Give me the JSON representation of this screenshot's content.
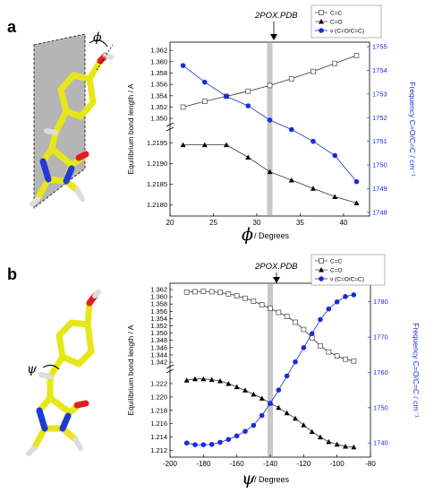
{
  "panels": [
    {
      "panel_label": "a",
      "molecule_angle_symbol": "ϕ",
      "annotation": "2POX.PDB",
      "legend": [
        "C=C",
        "C=O",
        "ν (C=O/C=C)"
      ],
      "xlabel_symbol": "ϕ",
      "xlabel_unit": "/ Degrees",
      "ylabel_left": "Equilibrium bond length / A",
      "ylabel_right": "Frequency C=O/C=C / cm⁻¹",
      "x_ticks": [
        "20",
        "25",
        "30",
        "35",
        "40"
      ],
      "y_upper_ticks": [
        "1.350",
        "1.352",
        "1.354",
        "1.356",
        "1.358",
        "1.360",
        "1.362"
      ],
      "y_lower_ticks": [
        "1.2180",
        "1.2185",
        "1.2190",
        "1.2195"
      ],
      "y_right_ticks": [
        "1748",
        "1749",
        "1750",
        "1751",
        "1752",
        "1753",
        "1754",
        "1755"
      ]
    },
    {
      "panel_label": "b",
      "molecule_angle_symbol": "ψ",
      "annotation": "2POX.PDB",
      "legend": [
        "C=C",
        "C=O",
        "ν (C=O/C=C)"
      ],
      "xlabel_symbol": "ψ",
      "xlabel_unit": "/ Degrees",
      "ylabel_left": "Equilibrium bond length / A",
      "ylabel_right": "Frequency C=O/C=C / cm⁻¹",
      "x_ticks": [
        "-200",
        "-180",
        "-160",
        "-140",
        "-120",
        "-100",
        "-80"
      ],
      "y_upper_ticks": [
        "1.342",
        "1.344",
        "1.346",
        "1.348",
        "1.350",
        "1.352",
        "1.354",
        "1.356",
        "1.358",
        "1.360",
        "1.362"
      ],
      "y_lower_ticks": [
        "1.212",
        "1.214",
        "1.216",
        "1.218",
        "1.220",
        "1.222"
      ],
      "y_right_ticks": [
        "1740",
        "1750",
        "1760",
        "1770",
        "1780"
      ]
    }
  ],
  "chart_data": [
    {
      "type": "line",
      "title": "",
      "xlabel": "ϕ / Degrees",
      "ylabel": "Equilibrium bond length / A",
      "ylabel_right": "Frequency C=O/C=C / cm⁻¹",
      "xlim": [
        20,
        43
      ],
      "ylim_upper": [
        1.3497,
        1.3625
      ],
      "ylim_lower": [
        1.2178,
        1.2197
      ],
      "ylim_right": [
        1748,
        1755
      ],
      "reference_x": 31.5,
      "legend_position": "top-right",
      "series": [
        {
          "name": "C=C",
          "axis": "left-upper",
          "marker": "open-square",
          "x": [
            21.5,
            24.0,
            26.5,
            29.0,
            31.5,
            34.0,
            36.5,
            39.0,
            41.5
          ],
          "y": [
            1.352,
            1.353,
            1.3539,
            1.3548,
            1.3558,
            1.357,
            1.3583,
            1.3597,
            1.3611
          ]
        },
        {
          "name": "C=O",
          "axis": "left-lower",
          "marker": "filled-triangle",
          "x": [
            21.5,
            24.0,
            26.5,
            29.0,
            31.5,
            34.0,
            36.5,
            39.0,
            41.5
          ],
          "y": [
            1.21945,
            1.21945,
            1.21945,
            1.21915,
            1.2188,
            1.2186,
            1.2184,
            1.2182,
            1.21805
          ]
        },
        {
          "name": "ν (C=O/C=C)",
          "axis": "right",
          "marker": "filled-circle",
          "x": [
            21.5,
            24.0,
            26.5,
            29.0,
            31.5,
            34.0,
            36.5,
            39.0,
            41.5
          ],
          "y": [
            1754.2,
            1753.5,
            1752.9,
            1752.5,
            1751.9,
            1751.5,
            1751.0,
            1750.4,
            1749.3
          ]
        }
      ]
    },
    {
      "type": "line",
      "title": "",
      "xlabel": "ψ / Degrees",
      "ylabel": "Equilibrium bond length / A",
      "ylabel_right": "Frequency C=O/C=C / cm⁻¹",
      "xlim": [
        -200,
        -80
      ],
      "ylim_upper": [
        1.3415,
        1.3625
      ],
      "ylim_lower": [
        1.2118,
        1.2232
      ],
      "ylim_right": [
        1737,
        1784
      ],
      "reference_x": -140,
      "legend_position": "top-right",
      "series": [
        {
          "name": "C=C",
          "axis": "left-upper",
          "marker": "open-square",
          "x": [
            -190,
            -185,
            -180,
            -175,
            -170,
            -165,
            -160,
            -155,
            -150,
            -145,
            -140,
            -135,
            -130,
            -125,
            -120,
            -115,
            -110,
            -105,
            -100,
            -95,
            -90
          ],
          "y": [
            1.3613,
            1.3614,
            1.3615,
            1.3614,
            1.3612,
            1.3608,
            1.3603,
            1.3596,
            1.3588,
            1.3578,
            1.3568,
            1.3557,
            1.3546,
            1.353,
            1.351,
            1.3487,
            1.3465,
            1.3448,
            1.3437,
            1.3428,
            1.3423
          ]
        },
        {
          "name": "C=O",
          "axis": "left-lower",
          "marker": "filled-triangle",
          "x": [
            -190,
            -185,
            -180,
            -175,
            -170,
            -165,
            -160,
            -155,
            -150,
            -145,
            -140,
            -135,
            -130,
            -125,
            -120,
            -115,
            -110,
            -105,
            -100,
            -95,
            -90
          ],
          "y": [
            1.2225,
            1.2227,
            1.2227,
            1.2226,
            1.2224,
            1.222,
            1.2215,
            1.221,
            1.2204,
            1.2198,
            1.2191,
            1.2184,
            1.2176,
            1.2168,
            1.2158,
            1.2148,
            1.214,
            1.2133,
            1.2129,
            1.2126,
            1.2125
          ]
        },
        {
          "name": "ν (C=O/C=C)",
          "axis": "right",
          "marker": "filled-circle",
          "x": [
            -190,
            -185,
            -180,
            -175,
            -170,
            -165,
            -160,
            -155,
            -150,
            -145,
            -140,
            -135,
            -130,
            -125,
            -120,
            -115,
            -110,
            -105,
            -100,
            -95,
            -90
          ],
          "y": [
            1740.0,
            1739.5,
            1739.5,
            1739.6,
            1740.2,
            1741.0,
            1742.0,
            1743.3,
            1745.0,
            1747.8,
            1751.2,
            1755.0,
            1759.0,
            1763.0,
            1767.0,
            1771.0,
            1775.0,
            1778.0,
            1780.0,
            1781.5,
            1782.0
          ]
        }
      ]
    }
  ]
}
